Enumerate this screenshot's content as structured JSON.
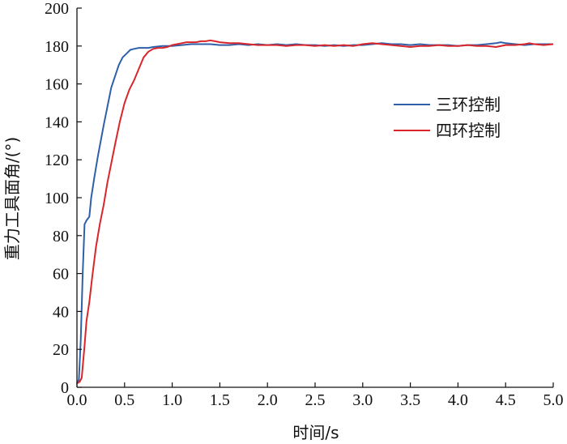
{
  "chart_data": {
    "type": "line",
    "title": "",
    "xlabel": "时间/s",
    "ylabel": "重力工具面角/(°)",
    "xlim": [
      0.0,
      5.0
    ],
    "ylim": [
      0,
      200
    ],
    "xticks": [
      "0.0",
      "0.5",
      "1.0",
      "1.5",
      "2.0",
      "2.5",
      "3.0",
      "3.5",
      "4.0",
      "4.5",
      "5.0"
    ],
    "yticks": [
      "0",
      "20",
      "40",
      "60",
      "80",
      "100",
      "120",
      "140",
      "160",
      "180",
      "200"
    ],
    "grid": false,
    "legend_position": "right",
    "colors": {
      "三环控制": "#2f5fa8",
      "四环控制": "#d9262b"
    },
    "series": [
      {
        "name": "三环控制",
        "color": "#2f5fa8",
        "points": [
          [
            0.0,
            2
          ],
          [
            0.02,
            4
          ],
          [
            0.04,
            25
          ],
          [
            0.06,
            60
          ],
          [
            0.08,
            86
          ],
          [
            0.1,
            88
          ],
          [
            0.13,
            90
          ],
          [
            0.15,
            100
          ],
          [
            0.18,
            110
          ],
          [
            0.22,
            122
          ],
          [
            0.25,
            130
          ],
          [
            0.28,
            138
          ],
          [
            0.32,
            148
          ],
          [
            0.36,
            158
          ],
          [
            0.4,
            164
          ],
          [
            0.44,
            170
          ],
          [
            0.48,
            174
          ],
          [
            0.52,
            176
          ],
          [
            0.56,
            178
          ],
          [
            0.6,
            178.5
          ],
          [
            0.65,
            179
          ],
          [
            0.7,
            179
          ],
          [
            0.75,
            179
          ],
          [
            0.8,
            179.5
          ],
          [
            0.9,
            180
          ],
          [
            1.0,
            180
          ],
          [
            1.1,
            180.5
          ],
          [
            1.2,
            181
          ],
          [
            1.3,
            181
          ],
          [
            1.4,
            181
          ],
          [
            1.5,
            180.5
          ],
          [
            1.6,
            180.5
          ],
          [
            1.7,
            181
          ],
          [
            1.8,
            180.5
          ],
          [
            1.9,
            181
          ],
          [
            2.0,
            180.5
          ],
          [
            2.1,
            181
          ],
          [
            2.2,
            180.5
          ],
          [
            2.3,
            181
          ],
          [
            2.4,
            180.5
          ],
          [
            2.5,
            180.5
          ],
          [
            2.6,
            180
          ],
          [
            2.7,
            180.5
          ],
          [
            2.8,
            180
          ],
          [
            2.9,
            180.5
          ],
          [
            3.0,
            180.5
          ],
          [
            3.1,
            181
          ],
          [
            3.2,
            181.5
          ],
          [
            3.3,
            181
          ],
          [
            3.4,
            181
          ],
          [
            3.5,
            180.5
          ],
          [
            3.6,
            181
          ],
          [
            3.7,
            180.5
          ],
          [
            3.8,
            180.5
          ],
          [
            3.9,
            180.5
          ],
          [
            4.0,
            180
          ],
          [
            4.1,
            180.5
          ],
          [
            4.2,
            180.5
          ],
          [
            4.3,
            181
          ],
          [
            4.4,
            181.5
          ],
          [
            4.45,
            182
          ],
          [
            4.5,
            181.5
          ],
          [
            4.6,
            181
          ],
          [
            4.7,
            180.5
          ],
          [
            4.8,
            181
          ],
          [
            4.9,
            181
          ],
          [
            5.0,
            181
          ]
        ]
      },
      {
        "name": "四环控制",
        "color": "#d9262b",
        "points": [
          [
            0.0,
            2
          ],
          [
            0.03,
            3
          ],
          [
            0.05,
            5
          ],
          [
            0.08,
            22
          ],
          [
            0.1,
            35
          ],
          [
            0.13,
            45
          ],
          [
            0.16,
            58
          ],
          [
            0.2,
            74
          ],
          [
            0.24,
            86
          ],
          [
            0.28,
            96
          ],
          [
            0.32,
            108
          ],
          [
            0.36,
            118
          ],
          [
            0.4,
            128
          ],
          [
            0.45,
            140
          ],
          [
            0.5,
            150
          ],
          [
            0.55,
            157
          ],
          [
            0.6,
            162
          ],
          [
            0.65,
            168
          ],
          [
            0.7,
            174
          ],
          [
            0.75,
            177
          ],
          [
            0.8,
            178.5
          ],
          [
            0.85,
            179
          ],
          [
            0.9,
            179
          ],
          [
            0.95,
            179.5
          ],
          [
            1.0,
            180.5
          ],
          [
            1.05,
            181
          ],
          [
            1.1,
            181.5
          ],
          [
            1.15,
            182
          ],
          [
            1.2,
            182
          ],
          [
            1.25,
            182
          ],
          [
            1.3,
            182.5
          ],
          [
            1.35,
            182.5
          ],
          [
            1.4,
            183
          ],
          [
            1.45,
            182.5
          ],
          [
            1.5,
            182
          ],
          [
            1.6,
            181.5
          ],
          [
            1.7,
            181.5
          ],
          [
            1.8,
            181
          ],
          [
            1.9,
            180.5
          ],
          [
            2.0,
            180.5
          ],
          [
            2.1,
            180.5
          ],
          [
            2.2,
            180
          ],
          [
            2.3,
            180.5
          ],
          [
            2.4,
            180.5
          ],
          [
            2.5,
            180
          ],
          [
            2.6,
            180.5
          ],
          [
            2.7,
            180
          ],
          [
            2.8,
            180.5
          ],
          [
            2.9,
            180
          ],
          [
            3.0,
            181
          ],
          [
            3.1,
            181.5
          ],
          [
            3.2,
            181
          ],
          [
            3.3,
            180.5
          ],
          [
            3.4,
            180
          ],
          [
            3.5,
            179.5
          ],
          [
            3.6,
            180
          ],
          [
            3.7,
            180
          ],
          [
            3.8,
            180.5
          ],
          [
            3.9,
            180
          ],
          [
            4.0,
            180
          ],
          [
            4.1,
            180.5
          ],
          [
            4.2,
            180
          ],
          [
            4.3,
            180
          ],
          [
            4.4,
            179.5
          ],
          [
            4.5,
            180.5
          ],
          [
            4.6,
            180.5
          ],
          [
            4.7,
            181
          ],
          [
            4.75,
            181.5
          ],
          [
            4.8,
            181
          ],
          [
            4.9,
            180.5
          ],
          [
            5.0,
            181
          ]
        ]
      }
    ]
  }
}
